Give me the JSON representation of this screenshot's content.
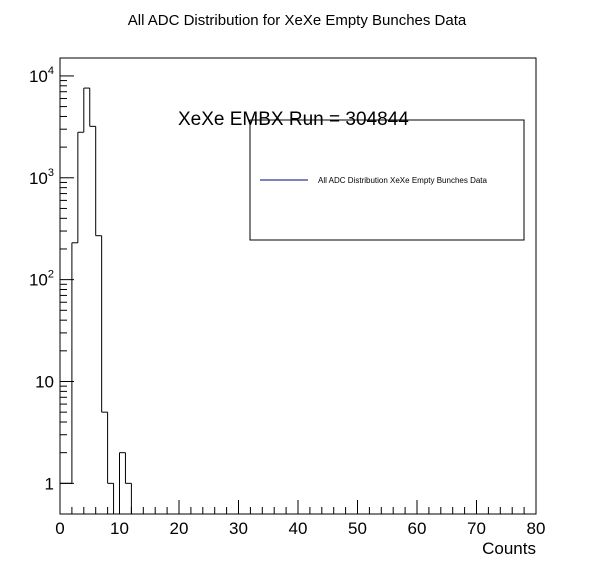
{
  "chart_data": {
    "type": "bar",
    "title": "All ADC Distribution for XeXe Empty Bunches Data",
    "xlabel": "Counts",
    "ylabel": "",
    "xlim": [
      0,
      80
    ],
    "ylim": [
      0.5,
      15000
    ],
    "log_y": true,
    "grid": false,
    "x_ticks": [
      "0",
      "10",
      "20",
      "30",
      "40",
      "50",
      "60",
      "70",
      "80"
    ],
    "y_ticks": [
      {
        "value": 1,
        "base": "1",
        "exp": ""
      },
      {
        "value": 10,
        "base": "10",
        "exp": ""
      },
      {
        "value": 100,
        "base": "10",
        "exp": "2"
      },
      {
        "value": 1000,
        "base": "10",
        "exp": "3"
      },
      {
        "value": 10000,
        "base": "10",
        "exp": "4"
      }
    ],
    "bin_width": 1,
    "bins": [
      {
        "x": 0,
        "value": 1
      },
      {
        "x": 1,
        "value": 1
      },
      {
        "x": 2,
        "value": 230
      },
      {
        "x": 3,
        "value": 2800
      },
      {
        "x": 4,
        "value": 7600
      },
      {
        "x": 5,
        "value": 3200
      },
      {
        "x": 6,
        "value": 270
      },
      {
        "x": 7,
        "value": 5
      },
      {
        "x": 8,
        "value": 1
      },
      {
        "x": 9,
        "value": 0
      },
      {
        "x": 10,
        "value": 2
      },
      {
        "x": 11,
        "value": 1
      },
      {
        "x": 12,
        "value": 0
      }
    ],
    "series": [
      {
        "name": "All ADC Distribution XeXe Empty Bunches Data",
        "color": "#000080"
      }
    ],
    "annotation": "XeXe EMBX Run = 304844",
    "legend_position": "upper-right"
  }
}
